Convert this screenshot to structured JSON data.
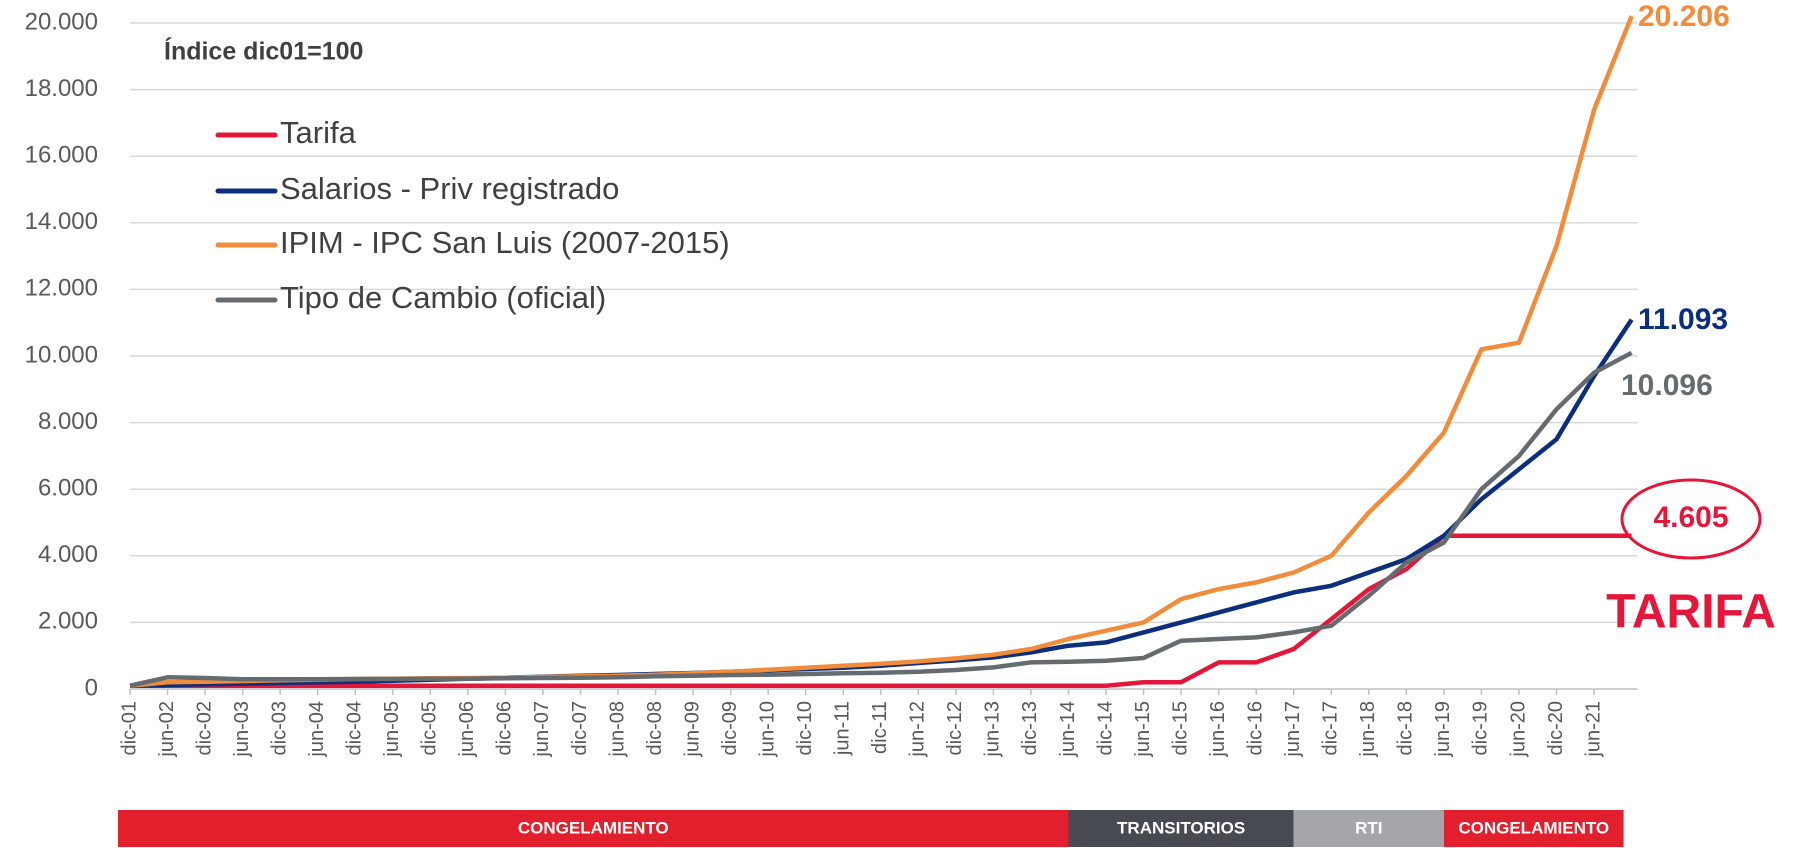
{
  "chart_data": {
    "type": "line",
    "subtitle": "Índice dic01=100",
    "categories": [
      "dic-01",
      "jun-02",
      "dic-02",
      "jun-03",
      "dic-03",
      "jun-04",
      "dic-04",
      "jun-05",
      "dic-05",
      "jun-06",
      "dic-06",
      "jun-07",
      "dic-07",
      "jun-08",
      "dic-08",
      "jun-09",
      "dic-09",
      "jun-10",
      "dic-10",
      "jun-11",
      "dic-11",
      "jun-12",
      "dic-12",
      "jun-13",
      "dic-13",
      "jun-14",
      "dic-14",
      "jun-15",
      "dic-15",
      "jun-16",
      "dic-16",
      "jun-17",
      "dic-17",
      "jun-18",
      "dic-18",
      "jun-19",
      "dic-19",
      "jun-20",
      "dic-20",
      "jun-21",
      null
    ],
    "series": [
      {
        "name": "Tarifa",
        "color": "#e4173a",
        "values": [
          100,
          100,
          100,
          100,
          100,
          100,
          100,
          100,
          100,
          100,
          100,
          100,
          100,
          100,
          100,
          100,
          100,
          100,
          100,
          100,
          100,
          100,
          100,
          100,
          100,
          100,
          100,
          200,
          200,
          800,
          800,
          1200,
          2100,
          3000,
          3600,
          4605,
          4605,
          4605,
          4605,
          4605,
          4605
        ],
        "end_label": "4.605"
      },
      {
        "name": "Salarios - Priv registrado",
        "color": "#0b2f7c",
        "values": [
          100,
          120,
          140,
          160,
          180,
          200,
          220,
          250,
          280,
          310,
          340,
          370,
          400,
          420,
          450,
          480,
          520,
          560,
          600,
          640,
          700,
          780,
          860,
          950,
          1100,
          1300,
          1400,
          1700,
          2000,
          2300,
          2600,
          2900,
          3100,
          3500,
          3900,
          4600,
          5700,
          6600,
          7500,
          9400,
          11093
        ],
        "end_label": "11.093"
      },
      {
        "name": "IPIM - IPC San Luis (2007-2015)",
        "color": "#f28c3a",
        "values": [
          100,
          200,
          220,
          240,
          260,
          280,
          300,
          310,
          320,
          330,
          340,
          360,
          380,
          400,
          430,
          470,
          520,
          580,
          640,
          700,
          760,
          830,
          920,
          1030,
          1200,
          1500,
          1750,
          2000,
          2700,
          3000,
          3200,
          3500,
          4000,
          5300,
          6400,
          7700,
          10200,
          10400,
          13300,
          17400,
          20206
        ],
        "end_label": "20.206"
      },
      {
        "name": "Tipo de Cambio (oficial)",
        "color": "#666b70",
        "values": [
          100,
          350,
          330,
          290,
          290,
          290,
          300,
          300,
          310,
          310,
          320,
          330,
          340,
          350,
          380,
          400,
          420,
          430,
          450,
          470,
          490,
          520,
          570,
          650,
          800,
          820,
          850,
          930,
          1450,
          1500,
          1550,
          1700,
          1900,
          2800,
          3800,
          4400,
          6000,
          7000,
          8400,
          9500,
          10096
        ],
        "end_label": "10.096"
      }
    ],
    "ylim": [
      0,
      20000
    ],
    "yticks": [
      0,
      {
        "value": 2000,
        "label": "2.000"
      },
      {
        "value": 4000,
        "label": "4.000"
      },
      {
        "value": 6000,
        "label": "6.000"
      },
      {
        "value": 8000,
        "label": "8.000"
      },
      {
        "value": 10000,
        "label": "10.000"
      },
      {
        "value": 12000,
        "label": "12.000"
      },
      {
        "value": 14000,
        "label": "14.000"
      },
      {
        "value": 16000,
        "label": "16.000"
      },
      {
        "value": 18000,
        "label": "18.000"
      },
      {
        "value": 20000,
        "label": "20.000"
      }
    ],
    "grid": true,
    "annotation": "TARIFA",
    "phases": [
      {
        "label": "CONGELAMIENTO",
        "start": "dic-01",
        "color": "#e21f2d"
      },
      {
        "label": "TRANSITORIOS",
        "start": "jun-14",
        "color": "#474a51"
      },
      {
        "label": "RTI",
        "start": "jun-17",
        "color": "#a4a6a9"
      },
      {
        "label": "CONGELAMIENTO",
        "start": "jun-19",
        "color": "#e21f2d"
      }
    ]
  }
}
